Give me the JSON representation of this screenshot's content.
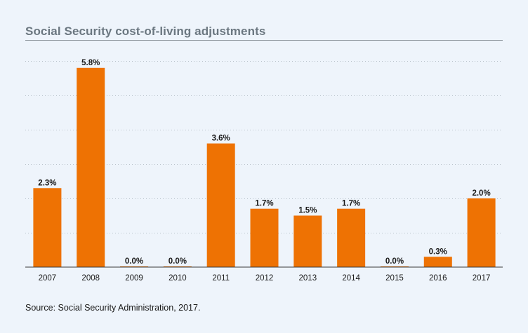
{
  "title": "Social Security cost-of-living adjustments",
  "source": "Source: Social Security Administration, 2017.",
  "colors": {
    "bar": "#ee7203",
    "grid": "#b8c2ca",
    "axis": "#3a3a3a",
    "background": "#eef4fb"
  },
  "chart_data": {
    "type": "bar",
    "title": "Social Security cost-of-living adjustments",
    "categories": [
      "2007",
      "2008",
      "2009",
      "2010",
      "2011",
      "2012",
      "2013",
      "2014",
      "2015",
      "2016",
      "2017"
    ],
    "values": [
      2.3,
      5.8,
      0.0,
      0.0,
      3.6,
      1.7,
      1.5,
      1.7,
      0.0,
      0.3,
      2.0
    ],
    "data_labels": [
      "2.3%",
      "5.8%",
      "0.0%",
      "0.0%",
      "3.6%",
      "1.7%",
      "1.5%",
      "1.7%",
      "0.0%",
      "0.3%",
      "2.0%"
    ],
    "ylim": [
      0,
      6
    ],
    "grid": true,
    "xlabel": "",
    "ylabel": ""
  }
}
